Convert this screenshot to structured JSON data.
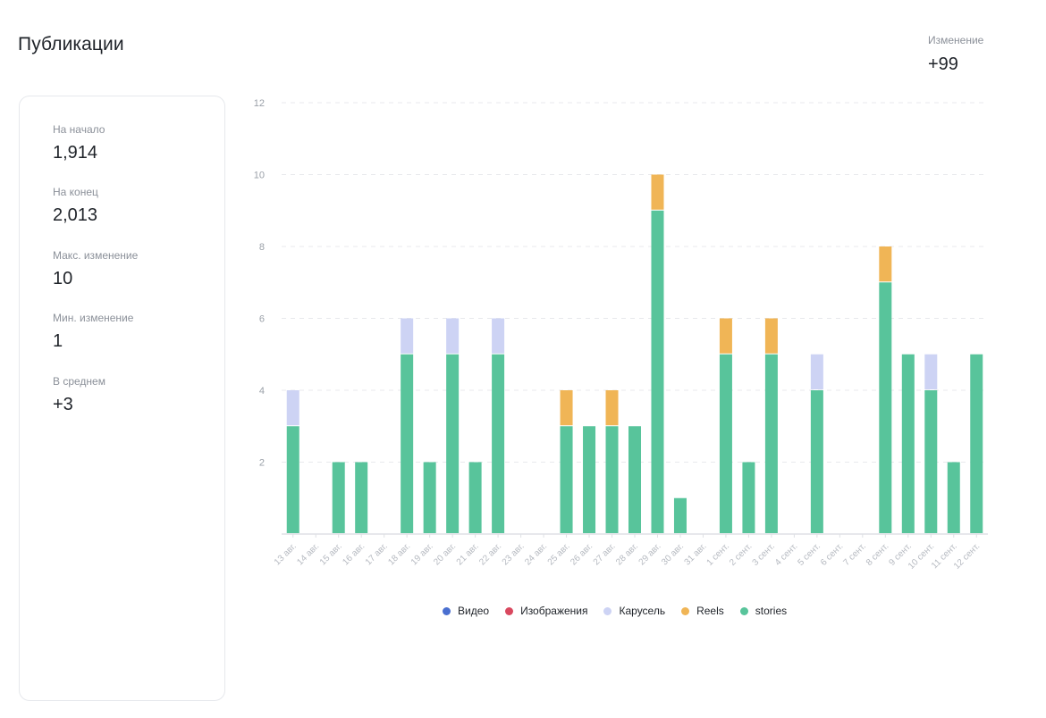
{
  "title": "Публикации",
  "change": {
    "label": "Изменение",
    "value": "+99"
  },
  "stats": [
    {
      "label": "На начало",
      "value": "1,914"
    },
    {
      "label": "На конец",
      "value": "2,013"
    },
    {
      "label": "Макс. изменение",
      "value": "10"
    },
    {
      "label": "Мин. изменение",
      "value": "1"
    },
    {
      "label": "В среднем",
      "value": "+3"
    }
  ],
  "colors": {
    "video": "#4a6fd0",
    "images": "#d9485f",
    "carousel": "#cdd3f4",
    "reels": "#f0b556",
    "stories": "#58c49b"
  },
  "chart_data": {
    "type": "bar",
    "stacked": true,
    "ylim": [
      0,
      12
    ],
    "yticks": [
      2,
      4,
      6,
      8,
      10,
      12
    ],
    "grid": true,
    "legend_position": "bottom",
    "categories": [
      "13 авг.",
      "14 авг.",
      "15 авг.",
      "16 авг.",
      "17 авг.",
      "18 авг.",
      "19 авг.",
      "20 авг.",
      "21 авг.",
      "22 авг.",
      "23 авг.",
      "24 авг.",
      "25 авг.",
      "26 авг.",
      "27 авг.",
      "28 авг.",
      "29 авг.",
      "30 авг.",
      "31 авг.",
      "1 сент.",
      "2 сент.",
      "3 сент.",
      "4 сент.",
      "5 сент.",
      "6 сент.",
      "7 сент.",
      "8 сент.",
      "9 сент.",
      "10 сент.",
      "11 сент.",
      "12 сент."
    ],
    "series": [
      {
        "name": "Видео",
        "color_key": "video",
        "values": [
          0,
          0,
          0,
          0,
          0,
          0,
          0,
          0,
          0,
          0,
          0,
          0,
          0,
          0,
          0,
          0,
          0,
          0,
          0,
          0,
          0,
          0,
          0,
          0,
          0,
          0,
          0,
          0,
          0,
          0,
          0
        ]
      },
      {
        "name": "Изображения",
        "color_key": "images",
        "values": [
          0,
          0,
          0,
          0,
          0,
          0,
          0,
          0,
          0,
          0,
          0,
          0,
          0,
          0,
          0,
          0,
          0,
          0,
          0,
          0,
          0,
          0,
          0,
          0,
          0,
          0,
          0,
          0,
          0,
          0,
          0
        ]
      },
      {
        "name": "stories",
        "color_key": "stories",
        "values": [
          3,
          0,
          2,
          2,
          0,
          5,
          2,
          5,
          2,
          5,
          0,
          0,
          3,
          3,
          3,
          3,
          9,
          1,
          0,
          5,
          2,
          5,
          0,
          4,
          0,
          0,
          7,
          5,
          4,
          2,
          5
        ]
      },
      {
        "name": "Карусель",
        "color_key": "carousel",
        "values": [
          1,
          0,
          0,
          0,
          0,
          1,
          0,
          1,
          0,
          1,
          0,
          0,
          0,
          0,
          0,
          0,
          0,
          0,
          0,
          0,
          0,
          0,
          0,
          1,
          0,
          0,
          0,
          0,
          1,
          0,
          0
        ]
      },
      {
        "name": "Reels",
        "color_key": "reels",
        "values": [
          0,
          0,
          0,
          0,
          0,
          0,
          0,
          0,
          0,
          0,
          0,
          0,
          1,
          0,
          1,
          0,
          1,
          0,
          0,
          1,
          0,
          1,
          0,
          0,
          0,
          0,
          1,
          0,
          0,
          0,
          0
        ]
      }
    ],
    "legend": [
      {
        "name": "Видео",
        "color_key": "video"
      },
      {
        "name": "Изображения",
        "color_key": "images"
      },
      {
        "name": "Карусель",
        "color_key": "carousel"
      },
      {
        "name": "Reels",
        "color_key": "reels"
      },
      {
        "name": "stories",
        "color_key": "stories"
      }
    ]
  }
}
